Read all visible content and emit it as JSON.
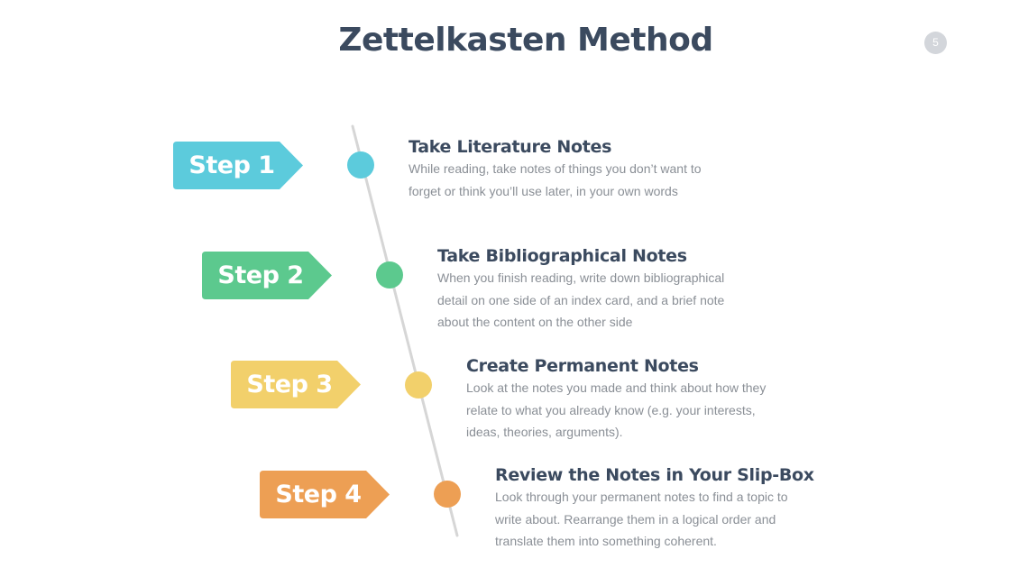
{
  "title": "Zettelkasten Method",
  "page_number": "5",
  "colors": {
    "title": "#3b4a5f",
    "timeline_line": "#d6d6d6",
    "page_badge": "#d3d6db"
  },
  "steps": [
    {
      "tag": "Step 1",
      "color": "#5ccbdc",
      "heading": "Take Literature Notes",
      "description": "While reading, take notes of things you don’t want to forget or think you’ll use later, in your own words"
    },
    {
      "tag": "Step 2",
      "color": "#5cc98e",
      "heading": "Take Bibliographical Notes",
      "description": "When you finish reading, write down bibliographical detail on one side of an index card, and a brief note about the content on the other side"
    },
    {
      "tag": "Step 3",
      "color": "#f2d06b",
      "heading": "Create Permanent Notes",
      "description": "Look at the notes you made and think about how they relate to what you already know (e.g. your interests, ideas, theories, arguments)."
    },
    {
      "tag": "Step 4",
      "color": "#ed9f54",
      "heading": "Review the Notes in Your Slip-Box",
      "description": "Look through your permanent notes to find a topic to write about. Rearrange them in a logical order and translate them into something coherent."
    }
  ]
}
